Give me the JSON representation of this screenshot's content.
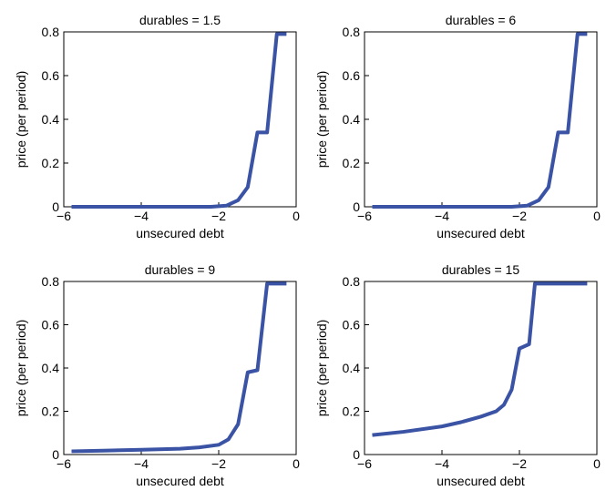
{
  "chart_data": [
    {
      "type": "line",
      "title": "durables = 1.5",
      "xlabel": "unsecured debt",
      "ylabel": "price (per period)",
      "x": [
        -5.8,
        -2.2,
        -1.8,
        -1.5,
        -1.25,
        -1.0,
        -0.75,
        -0.5,
        -0.25
      ],
      "series": [
        {
          "color": "#3a53a4",
          "values": [
            0,
            0,
            0.005,
            0.03,
            0.09,
            0.34,
            0.34,
            0.79,
            0.79
          ]
        }
      ],
      "xlim": [
        -6,
        0
      ],
      "xticks": [
        {
          "value": -6,
          "label": "−6"
        },
        {
          "value": -4,
          "label": "−4"
        },
        {
          "value": -2,
          "label": "−2"
        },
        0
      ],
      "ylim": [
        0,
        0.8
      ],
      "yticks": [
        0,
        0.2,
        0.4,
        0.6,
        0.8
      ]
    },
    {
      "type": "line",
      "title": "durables = 6",
      "xlabel": "unsecured debt",
      "ylabel": "price (per period)",
      "x": [
        -5.8,
        -2.2,
        -1.8,
        -1.5,
        -1.25,
        -1.0,
        -0.75,
        -0.5,
        -0.25
      ],
      "series": [
        {
          "color": "#3a53a4",
          "values": [
            0,
            0,
            0.005,
            0.03,
            0.09,
            0.34,
            0.34,
            0.79,
            0.79
          ]
        }
      ],
      "xlim": [
        -6,
        0
      ],
      "xticks": [
        {
          "value": -6,
          "label": "−6"
        },
        {
          "value": -4,
          "label": "−4"
        },
        {
          "value": -2,
          "label": "−2"
        },
        0
      ],
      "ylim": [
        0,
        0.8
      ],
      "yticks": [
        0,
        0.2,
        0.4,
        0.6,
        0.8
      ]
    },
    {
      "type": "line",
      "title": "durables = 9",
      "xlabel": "unsecured debt",
      "ylabel": "price (per period)",
      "x": [
        -5.8,
        -5,
        -4,
        -3,
        -2.5,
        -2,
        -1.75,
        -1.5,
        -1.25,
        -1.0,
        -0.75,
        -0.25
      ],
      "series": [
        {
          "color": "#3a53a4",
          "values": [
            0.015,
            0.018,
            0.022,
            0.027,
            0.033,
            0.045,
            0.07,
            0.14,
            0.38,
            0.39,
            0.79,
            0.79
          ]
        }
      ],
      "xlim": [
        -6,
        0
      ],
      "xticks": [
        {
          "value": -6,
          "label": "−6"
        },
        {
          "value": -4,
          "label": "−4"
        },
        {
          "value": -2,
          "label": "−2"
        },
        0
      ],
      "ylim": [
        0,
        0.8
      ],
      "yticks": [
        0,
        0.2,
        0.4,
        0.6,
        0.8
      ]
    },
    {
      "type": "line",
      "title": "durables = 15",
      "xlabel": "unsecured debt",
      "ylabel": "price (per period)",
      "x": [
        -5.8,
        -5,
        -4,
        -3.5,
        -3,
        -2.6,
        -2.4,
        -2.2,
        -2.0,
        -1.75,
        -1.6,
        -1.4,
        -0.25
      ],
      "series": [
        {
          "color": "#3a53a4",
          "values": [
            0.09,
            0.105,
            0.13,
            0.15,
            0.175,
            0.2,
            0.23,
            0.3,
            0.49,
            0.51,
            0.79,
            0.79,
            0.79
          ]
        }
      ],
      "xlim": [
        -6,
        0
      ],
      "xticks": [
        {
          "value": -6,
          "label": "−6"
        },
        {
          "value": -4,
          "label": "−4"
        },
        {
          "value": -2,
          "label": "−2"
        },
        0
      ],
      "ylim": [
        0,
        0.8
      ],
      "yticks": [
        0,
        0.2,
        0.4,
        0.6,
        0.8
      ]
    }
  ]
}
